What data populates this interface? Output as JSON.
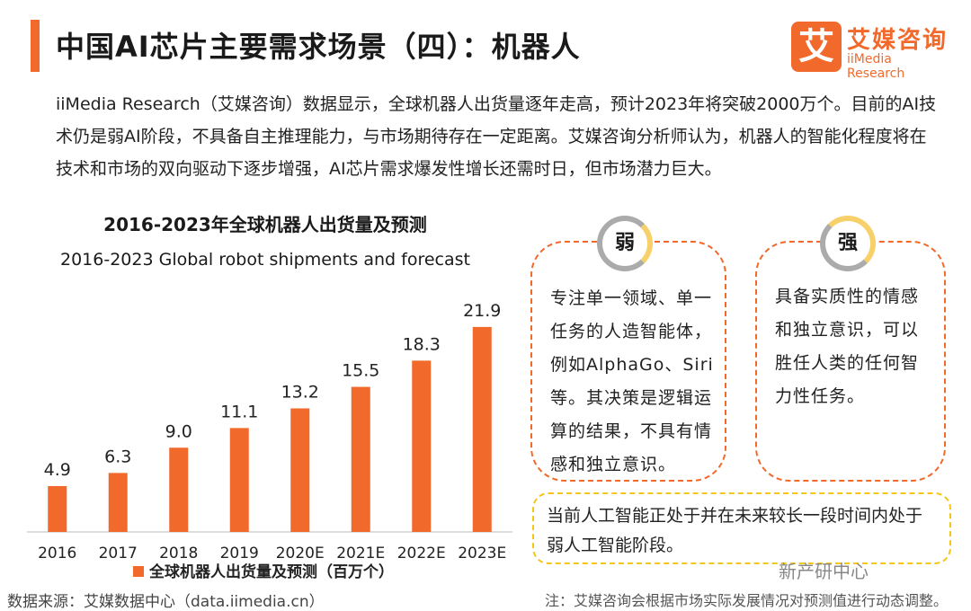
{
  "header": {
    "title": "中国AI芯片主要需求场景（四）：机器人",
    "logo_mark": "艾",
    "logo_cn": "艾媒咨询",
    "logo_en": "iiMedia Research"
  },
  "intro": "iiMedia Research（艾媒咨询）数据显示，全球机器人出货量逐年走高，预计2023年将突破2000万个。目前的AI技术仍是弱AI阶段，不具备自主推理能力，与市场期待存在一定距离。艾媒咨询分析师认为，机器人的智能化程度将在技术和市场的双向驱动下逐步增强，AI芯片需求爆发性增长还需时日，但市场潜力巨大。",
  "chart_data": {
    "type": "bar",
    "title": "2016-2023年全球机器人出货量及预测",
    "subtitle": "2016-2023 Global robot shipments and forecast",
    "categories": [
      "2016",
      "2017",
      "2018",
      "2019",
      "2020E",
      "2021E",
      "2022E",
      "2023E"
    ],
    "series": [
      {
        "name": "全球机器人出货量及预测（百万个）",
        "values": [
          4.9,
          6.3,
          9.0,
          11.1,
          13.2,
          15.5,
          18.3,
          21.9
        ],
        "color": "#f2692c"
      }
    ],
    "value_labels": [
      "4.9",
      "6.3",
      "9.0",
      "11.1",
      "13.2",
      "15.5",
      "18.3",
      "21.9"
    ],
    "ylim": [
      0,
      24
    ],
    "grid": false,
    "legend_position": "bottom"
  },
  "cards": {
    "weak": {
      "label": "弱",
      "text": "专注单一领域、单一任务的人造智能体，例如AlphaGo、Siri等。其决策是逻辑运算的结果，不具有情感和独立意识。"
    },
    "strong": {
      "label": "强",
      "text": "具备实质性的情感和独立意识，可以胜任人类的任何智力性任务。"
    }
  },
  "note": "当前人工智能正处于并在未来较长一段时间内处于弱人工智能阶段。",
  "footer": {
    "source": "数据来源：艾媒数据中心（data.iimedia.cn）",
    "footnote": "注：艾媒咨询会根据市场实际发展情况对预测值进行动态调整。",
    "watermark": "新产研中心"
  },
  "colors": {
    "accent": "#f2692c",
    "yellow": "#f5c518",
    "gray": "#ababab"
  }
}
